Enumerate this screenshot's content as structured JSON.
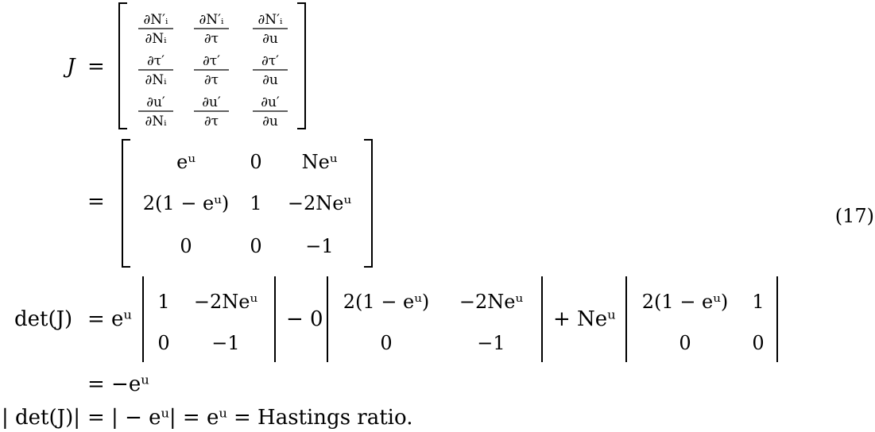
{
  "equation": {
    "number": "(17)",
    "lhs": {
      "J": "J",
      "detJ": "det(J)",
      "absdet": "| det(J)|"
    },
    "eq": "=",
    "jacobian_symbolic": {
      "rows": [
        [
          {
            "num": "∂N′ᵢ",
            "den": "∂Nᵢ"
          },
          {
            "num": "∂N′ᵢ",
            "den": "∂τ"
          },
          {
            "num": "∂N′ᵢ",
            "den": "∂u"
          }
        ],
        [
          {
            "num": "∂τ′",
            "den": "∂Nᵢ"
          },
          {
            "num": "∂τ′",
            "den": "∂τ"
          },
          {
            "num": "∂τ′",
            "den": "∂u"
          }
        ],
        [
          {
            "num": "∂u′",
            "den": "∂Nᵢ"
          },
          {
            "num": "∂u′",
            "den": "∂τ"
          },
          {
            "num": "∂u′",
            "den": "∂u"
          }
        ]
      ]
    },
    "jacobian_values": {
      "rows": [
        [
          "eᵘ",
          "0",
          "Neᵘ"
        ],
        [
          "2(1 − eᵘ)",
          "1",
          "−2Neᵘ"
        ],
        [
          "0",
          "0",
          "−1"
        ]
      ]
    },
    "cofactor_expansion": {
      "coef1": "eᵘ",
      "minor1": [
        [
          "1",
          "−2Neᵘ"
        ],
        [
          "0",
          "−1"
        ]
      ],
      "op2": "− 0",
      "minor2": [
        [
          "2(1 − eᵘ)",
          "−2Neᵘ"
        ],
        [
          "0",
          "−1"
        ]
      ],
      "op3": "+ Neᵘ",
      "minor3": [
        [
          "2(1 − eᵘ)",
          "1"
        ],
        [
          "0",
          "0"
        ]
      ]
    },
    "det_result": "= −eᵘ",
    "final_line": "= | − eᵘ| = eᵘ = Hastings ratio."
  }
}
